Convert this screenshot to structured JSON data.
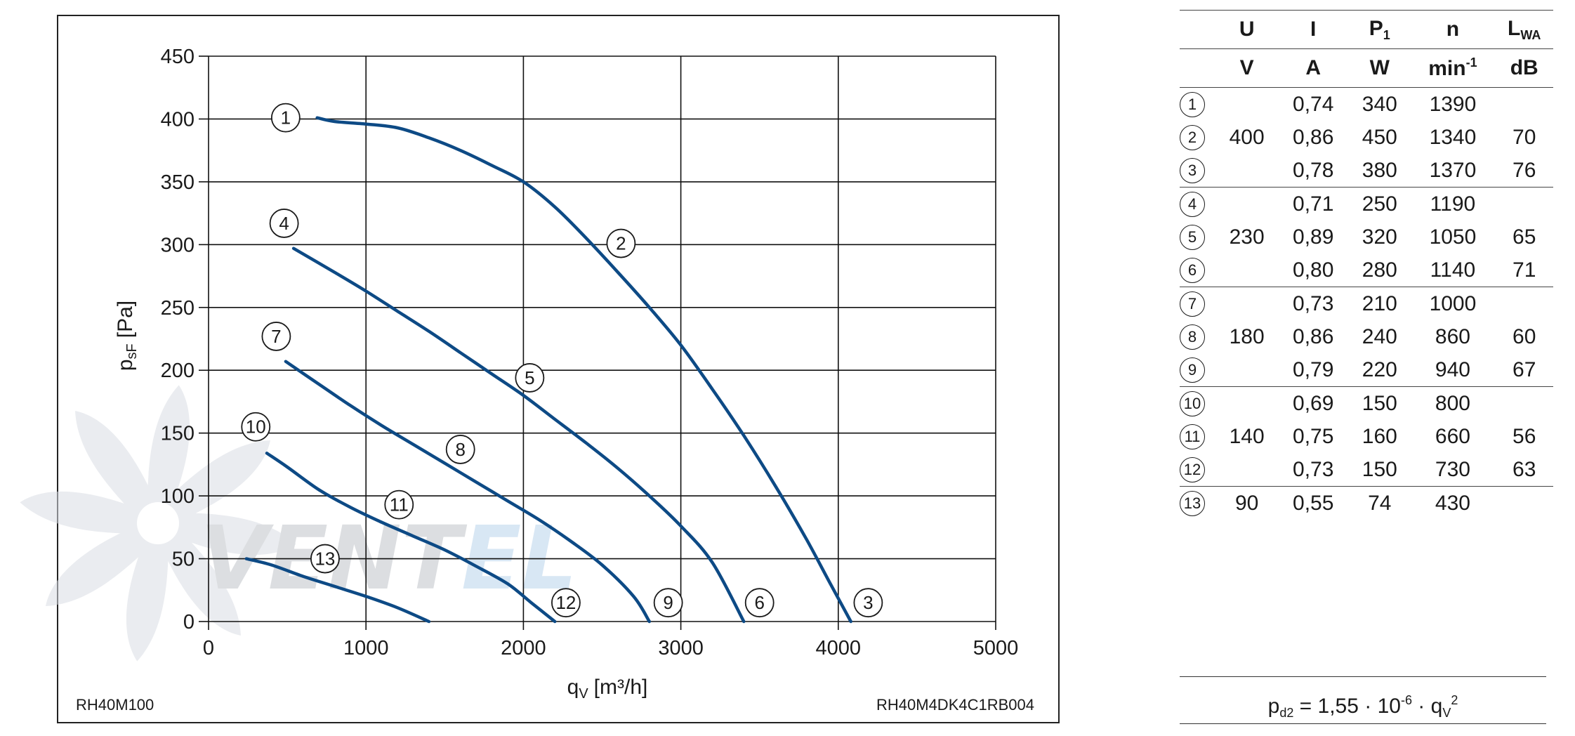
{
  "chart_data": {
    "type": "line",
    "xlabel": "q",
    "xlabel_sub": "V",
    "xlabel_unit": "[m³/h]",
    "ylabel": "p",
    "ylabel_sub": "sF",
    "ylabel_unit": "[Pa]",
    "xlim": [
      0,
      5000
    ],
    "ylim": [
      0,
      450
    ],
    "x_ticks": [
      "0",
      "1000",
      "2000",
      "3000",
      "4000",
      "5000"
    ],
    "y_ticks": [
      "0",
      "50",
      "100",
      "150",
      "200",
      "250",
      "300",
      "350",
      "400",
      "450"
    ],
    "grid": true,
    "line_color": "#0d4a85",
    "watermark": "VENTEL",
    "model_left": "RH40M100",
    "model_right": "RH40M4DK4C1RB004",
    "series": [
      {
        "points": [
          [
            690,
            401
          ],
          [
            800,
            398
          ],
          [
            1000,
            396
          ],
          [
            1200,
            393
          ],
          [
            1400,
            385
          ],
          [
            1600,
            375
          ],
          [
            1800,
            363
          ],
          [
            2000,
            350
          ],
          [
            2200,
            330
          ],
          [
            2400,
            305
          ],
          [
            2600,
            278
          ],
          [
            2800,
            250
          ],
          [
            3000,
            220
          ],
          [
            3200,
            185
          ],
          [
            3400,
            148
          ],
          [
            3600,
            108
          ],
          [
            3800,
            65
          ],
          [
            3950,
            30
          ],
          [
            4080,
            0
          ]
        ]
      },
      {
        "points": [
          [
            540,
            297
          ],
          [
            800,
            278
          ],
          [
            1000,
            263
          ],
          [
            1200,
            247
          ],
          [
            1400,
            231
          ],
          [
            1600,
            214
          ],
          [
            1800,
            197
          ],
          [
            2000,
            180
          ],
          [
            2200,
            161
          ],
          [
            2400,
            142
          ],
          [
            2600,
            122
          ],
          [
            2800,
            100
          ],
          [
            3000,
            76
          ],
          [
            3200,
            47
          ],
          [
            3400,
            0
          ]
        ]
      },
      {
        "points": [
          [
            490,
            207
          ],
          [
            700,
            189
          ],
          [
            900,
            172
          ],
          [
            1100,
            156
          ],
          [
            1300,
            141
          ],
          [
            1500,
            126
          ],
          [
            1700,
            111
          ],
          [
            1900,
            96
          ],
          [
            2100,
            81
          ],
          [
            2300,
            64
          ],
          [
            2500,
            45
          ],
          [
            2700,
            20
          ],
          [
            2800,
            0
          ]
        ]
      },
      {
        "points": [
          [
            370,
            134
          ],
          [
            500,
            123
          ],
          [
            700,
            105
          ],
          [
            900,
            91
          ],
          [
            1100,
            79
          ],
          [
            1300,
            68
          ],
          [
            1500,
            57
          ],
          [
            1700,
            44
          ],
          [
            1900,
            30
          ],
          [
            2050,
            15
          ],
          [
            2200,
            0
          ]
        ]
      },
      {
        "points": [
          [
            240,
            50
          ],
          [
            400,
            45
          ],
          [
            600,
            36
          ],
          [
            800,
            28
          ],
          [
            1000,
            20
          ],
          [
            1200,
            11
          ],
          [
            1400,
            0
          ]
        ]
      }
    ],
    "curve_labels": [
      {
        "num": "1",
        "x": 490,
        "y": 401
      },
      {
        "num": "2",
        "x": 2620,
        "y": 301
      },
      {
        "num": "3",
        "x": 4190,
        "y": 15
      },
      {
        "num": "4",
        "x": 480,
        "y": 317
      },
      {
        "num": "5",
        "x": 2040,
        "y": 194
      },
      {
        "num": "6",
        "x": 3500,
        "y": 15
      },
      {
        "num": "7",
        "x": 430,
        "y": 227
      },
      {
        "num": "8",
        "x": 1600,
        "y": 137
      },
      {
        "num": "9",
        "x": 2920,
        "y": 15
      },
      {
        "num": "10",
        "x": 300,
        "y": 155
      },
      {
        "num": "11",
        "x": 1210,
        "y": 93
      },
      {
        "num": "12",
        "x": 2270,
        "y": 15
      },
      {
        "num": "13",
        "x": 740,
        "y": 50
      }
    ]
  },
  "table": {
    "headers": [
      {
        "main": "",
        "sub": ""
      },
      {
        "main": "U",
        "sub": ""
      },
      {
        "main": "I",
        "sub": ""
      },
      {
        "main": "P",
        "sub": "1"
      },
      {
        "main": "n",
        "sub": ""
      },
      {
        "main": "L",
        "sub": "WA"
      }
    ],
    "units": [
      {
        "main": "",
        "sup": ""
      },
      {
        "main": "V",
        "sup": ""
      },
      {
        "main": "A",
        "sup": ""
      },
      {
        "main": "W",
        "sup": ""
      },
      {
        "main": "min",
        "sup": "-1"
      },
      {
        "main": "dB",
        "sup": ""
      }
    ],
    "rows": [
      {
        "num": "1",
        "U": "",
        "I": "0,74",
        "P1": "340",
        "n": "1390",
        "LWA": ""
      },
      {
        "num": "2",
        "U": "400",
        "I": "0,86",
        "P1": "450",
        "n": "1340",
        "LWA": "70"
      },
      {
        "num": "3",
        "U": "",
        "I": "0,78",
        "P1": "380",
        "n": "1370",
        "LWA": "76"
      },
      {
        "num": "4",
        "U": "",
        "I": "0,71",
        "P1": "250",
        "n": "1190",
        "LWA": ""
      },
      {
        "num": "5",
        "U": "230",
        "I": "0,89",
        "P1": "320",
        "n": "1050",
        "LWA": "65"
      },
      {
        "num": "6",
        "U": "",
        "I": "0,80",
        "P1": "280",
        "n": "1140",
        "LWA": "71"
      },
      {
        "num": "7",
        "U": "",
        "I": "0,73",
        "P1": "210",
        "n": "1000",
        "LWA": ""
      },
      {
        "num": "8",
        "U": "180",
        "I": "0,86",
        "P1": "240",
        "n": "860",
        "LWA": "60"
      },
      {
        "num": "9",
        "U": "",
        "I": "0,79",
        "P1": "220",
        "n": "940",
        "LWA": "67"
      },
      {
        "num": "10",
        "U": "",
        "I": "0,69",
        "P1": "150",
        "n": "800",
        "LWA": ""
      },
      {
        "num": "11",
        "U": "140",
        "I": "0,75",
        "P1": "160",
        "n": "660",
        "LWA": "56"
      },
      {
        "num": "12",
        "U": "",
        "I": "0,73",
        "P1": "150",
        "n": "730",
        "LWA": "63"
      },
      {
        "num": "13",
        "U": "90",
        "I": "0,55",
        "P1": "74",
        "n": "430",
        "LWA": ""
      }
    ]
  },
  "formula": {
    "lhs": "p",
    "lhs_sub": "d2",
    "mid": " = 1,55 · 10",
    "exp": "-6",
    "dot": " · q",
    "q_sub": "V",
    "q_sup": "2"
  }
}
